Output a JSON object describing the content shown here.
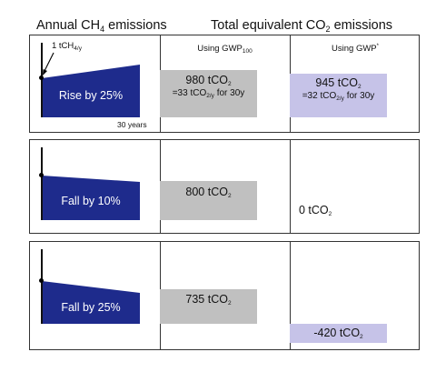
{
  "headers": {
    "annual": {
      "prefix": "Annual CH",
      "sub": "4",
      "suffix": " emissions"
    },
    "total": {
      "prefix": "Total equivalent CO",
      "sub": "2",
      "suffix": " emissions"
    }
  },
  "column_labels": {
    "gwp100": {
      "prefix": "Using GWP",
      "sub": "100"
    },
    "gwpstar": {
      "prefix": "Using GWP",
      "sup": "*"
    }
  },
  "annotations": {
    "start_point": {
      "prefix": "1 tCH",
      "sub": "4/y"
    },
    "duration": "30 years"
  },
  "colors": {
    "area": "#1e2b8c",
    "gray_bar": "#c0c0c0",
    "gwpstar_bar": "#c6c3e8"
  },
  "rows": [
    {
      "scenario": "Rise by 25%",
      "change_percent": 25,
      "gwp100": {
        "value_prefix": "980 tCO",
        "value_sub": "2",
        "tonnes_co2": 980,
        "note_prefix": "=33 tCO",
        "note_sub": "2/y",
        "note_suffix": " for 30y"
      },
      "gwpstar": {
        "value_prefix": "945 tCO",
        "value_sub": "2",
        "tonnes_co2": 945,
        "note_prefix": "=32 tCO",
        "note_sub": "2/y",
        "note_suffix": " for 30y"
      }
    },
    {
      "scenario": "Fall by 10%",
      "change_percent": -10,
      "gwp100": {
        "value_prefix": "800 tCO",
        "value_sub": "2",
        "tonnes_co2": 800
      },
      "gwpstar": {
        "value_prefix": "0 tCO",
        "value_sub": "2",
        "tonnes_co2": 0
      }
    },
    {
      "scenario": "Fall by 25%",
      "change_percent": -25,
      "gwp100": {
        "value_prefix": "735 tCO",
        "value_sub": "2",
        "tonnes_co2": 735
      },
      "gwpstar": {
        "value_prefix": "-420 tCO",
        "value_sub": "2",
        "tonnes_co2": -420
      }
    }
  ]
}
